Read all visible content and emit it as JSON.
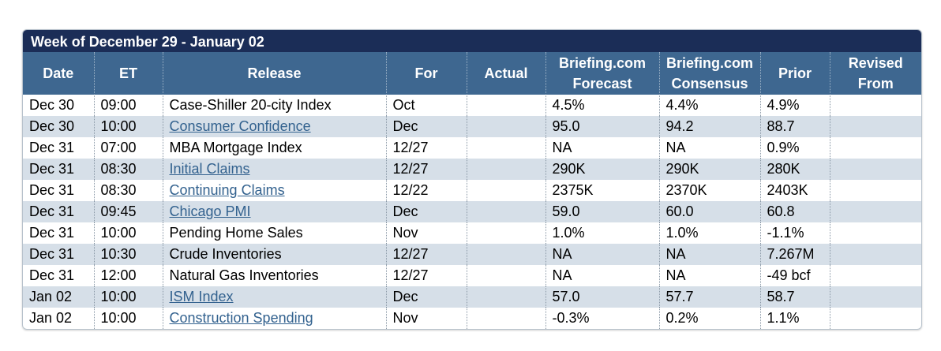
{
  "table": {
    "title": "Week of December 29 - January 02",
    "columns": [
      "Date",
      "ET",
      "Release",
      "For",
      "Actual",
      "Briefing.com Forecast",
      "Briefing.com Consensus",
      "Prior",
      "Revised From"
    ],
    "rows": [
      {
        "date": "Dec 30",
        "et": "09:00",
        "release": "Case-Shiller 20-city Index",
        "for": "Oct",
        "forecast": "4.5%",
        "consensus": "4.4%",
        "prior": "4.9%",
        "linked": false
      },
      {
        "date": "Dec 30",
        "et": "10:00",
        "release": "Consumer Confidence",
        "for": "Dec",
        "forecast": "95.0",
        "consensus": "94.2",
        "prior": "88.7",
        "linked": true
      },
      {
        "date": "Dec 31",
        "et": "07:00",
        "release": "MBA Mortgage Index",
        "for": "12/27",
        "forecast": "NA",
        "consensus": "NA",
        "prior": "0.9%",
        "linked": false
      },
      {
        "date": "Dec 31",
        "et": "08:30",
        "release": "Initial Claims",
        "for": "12/27",
        "forecast": "290K",
        "consensus": "290K",
        "prior": "280K",
        "linked": true
      },
      {
        "date": "Dec 31",
        "et": "08:30",
        "release": "Continuing Claims",
        "for": "12/22",
        "forecast": "2375K",
        "consensus": "2370K",
        "prior": "2403K",
        "linked": true
      },
      {
        "date": "Dec 31",
        "et": "09:45",
        "release": "Chicago PMI",
        "for": "Dec",
        "forecast": "59.0",
        "consensus": "60.0",
        "prior": "60.8",
        "linked": true
      },
      {
        "date": "Dec 31",
        "et": "10:00",
        "release": "Pending Home Sales",
        "for": "Nov",
        "forecast": "1.0%",
        "consensus": "1.0%",
        "prior": "-1.1%",
        "linked": false
      },
      {
        "date": "Dec 31",
        "et": "10:30",
        "release": "Crude Inventories",
        "for": "12/27",
        "forecast": "NA",
        "consensus": "NA",
        "prior": "7.267M",
        "linked": false
      },
      {
        "date": "Dec 31",
        "et": "12:00",
        "release": "Natural Gas Inventories",
        "for": "12/27",
        "forecast": "NA",
        "consensus": "NA",
        "prior": "-49 bcf",
        "linked": false
      },
      {
        "date": "Jan 02",
        "et": "10:00",
        "release": "ISM Index",
        "for": "Dec",
        "forecast": "57.0",
        "consensus": "57.7",
        "prior": "58.7",
        "linked": true
      },
      {
        "date": "Jan 02",
        "et": "10:00",
        "release": "Construction Spending",
        "for": "Nov",
        "forecast": "-0.3%",
        "consensus": "0.2%",
        "prior": "1.1%",
        "linked": true
      }
    ]
  }
}
